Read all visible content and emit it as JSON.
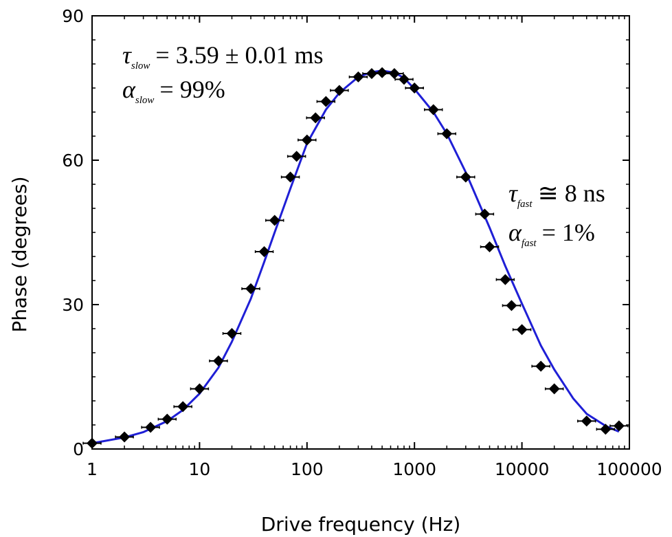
{
  "chart_data": {
    "type": "scatter",
    "xlabel": "Drive frequency (Hz)",
    "ylabel": "Phase (degrees)",
    "x_scale": "log",
    "xlim": [
      1,
      100000
    ],
    "ylim": [
      0,
      90
    ],
    "x_ticks": [
      1,
      10,
      100,
      1000,
      10000,
      100000
    ],
    "x_tick_labels": [
      "1",
      "10",
      "100",
      "1000",
      "10000",
      "100000"
    ],
    "y_ticks": [
      0,
      30,
      60,
      90
    ],
    "y_tick_labels": [
      "0",
      "30",
      "60",
      "90"
    ],
    "grid": false,
    "colors": {
      "fit": "#1f1fd6",
      "points": "#000000"
    },
    "series": [
      {
        "type": "scatter",
        "marker": "diamond",
        "x": [
          1,
          2,
          3.5,
          5,
          7,
          10,
          15,
          20,
          30,
          40,
          50,
          70,
          80,
          100,
          120,
          150,
          200,
          300,
          400,
          500,
          650,
          800,
          1000,
          1500,
          2000,
          3000,
          4500,
          5000,
          7000,
          8000,
          10000,
          15000,
          20000,
          40000,
          60000,
          80000
        ],
        "y": [
          1.2,
          2.5,
          4.5,
          6.2,
          8.8,
          12.5,
          18.3,
          24,
          33.3,
          41,
          47.5,
          56.5,
          60.8,
          64.2,
          68.8,
          72.2,
          74.5,
          77.3,
          78,
          78.2,
          78,
          76.8,
          75,
          70.5,
          65.5,
          56.5,
          48.8,
          42,
          35.2,
          29.8,
          24.8,
          17.2,
          12.5,
          5.8,
          4.1,
          4.8
        ]
      },
      {
        "type": "line",
        "x": [
          1,
          2,
          3,
          5,
          7,
          10,
          15,
          20,
          30,
          40,
          50,
          70,
          100,
          150,
          200,
          300,
          400,
          500,
          650,
          800,
          1000,
          1500,
          2000,
          3000,
          4000,
          5000,
          7000,
          10000,
          15000,
          20000,
          30000,
          40000,
          60000,
          80000
        ],
        "y": [
          1.2,
          2.4,
          3.5,
          5.8,
          8.1,
          11.5,
          16.9,
          22.3,
          31.2,
          38.9,
          45.0,
          54.1,
          63.5,
          70.5,
          74.0,
          77.3,
          78.3,
          78.6,
          78.2,
          77.1,
          74.8,
          70.0,
          65.5,
          57.5,
          51.0,
          46.0,
          38.0,
          30.2,
          21.5,
          16.5,
          10.5,
          7.3,
          4.8,
          3.6
        ]
      }
    ],
    "annotations": [
      {
        "text": "τslow = 3.59±0.01 ms",
        "position": "top-left"
      },
      {
        "text": "αslow = 99%",
        "position": "top-left"
      },
      {
        "text": "τfast ≅ 8 ns",
        "position": "right"
      },
      {
        "text": "αfast = 1%",
        "position": "right"
      }
    ]
  },
  "labels": {
    "tau_slow_symbol": "τ",
    "tau_slow_sub": "slow",
    "tau_slow_value": "= 3.59 ± 0.01 ms",
    "alpha_slow_symbol": "α",
    "alpha_slow_sub": "slow",
    "alpha_slow_value": "= 99%",
    "tau_fast_symbol": "τ",
    "tau_fast_sub": "fast",
    "tau_fast_value": "≅ 8 ns",
    "alpha_fast_symbol": "α",
    "alpha_fast_sub": "fast",
    "alpha_fast_value": "= 1%"
  }
}
